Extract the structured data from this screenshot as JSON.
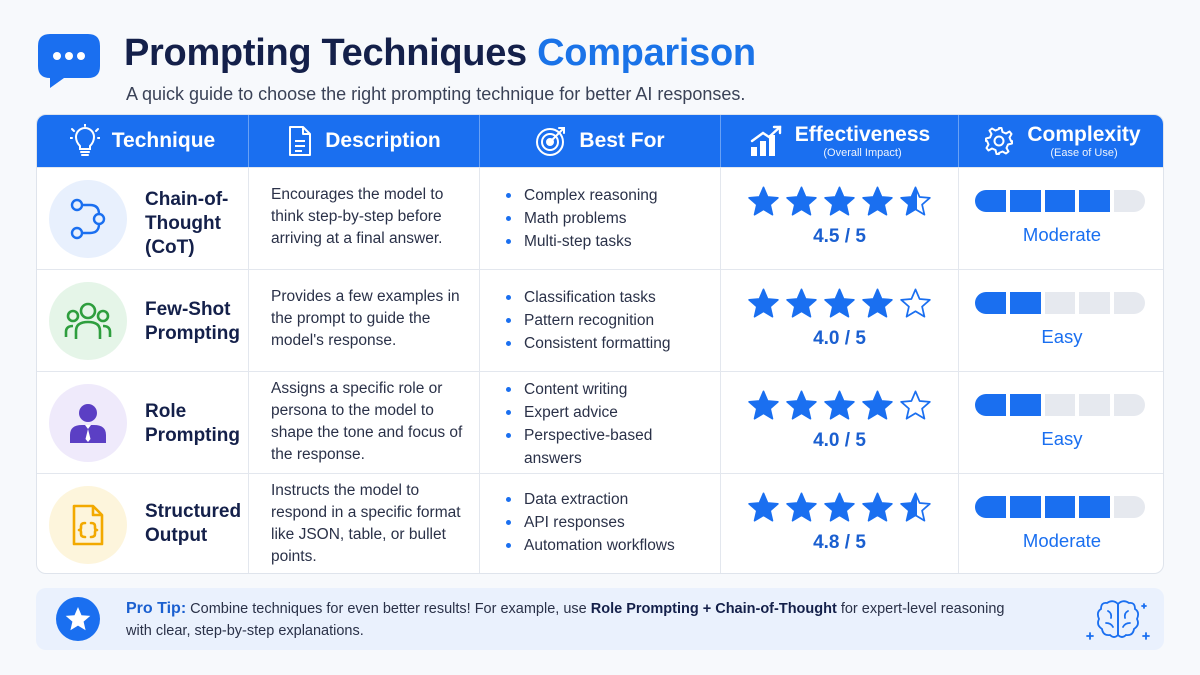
{
  "header": {
    "title_main": "Prompting Techniques",
    "title_accent": "Comparison",
    "subtitle": "A quick guide to choose the right prompting technique for better AI responses.",
    "logo_icon": "chat-bubble-icon"
  },
  "table": {
    "columns": [
      {
        "label": "Technique",
        "sub": "",
        "icon": "lightbulb-icon"
      },
      {
        "label": "Description",
        "sub": "",
        "icon": "document-icon"
      },
      {
        "label": "Best For",
        "sub": "",
        "icon": "target-icon"
      },
      {
        "label": "Effectiveness",
        "sub": "(Overall Impact)",
        "icon": "bar-chart-icon"
      },
      {
        "label": "Complexity",
        "sub": "(Ease of Use)",
        "icon": "gear-icon"
      }
    ],
    "rows": [
      {
        "name": "Chain-of-\nThought\n(CoT)",
        "icon": "flow-diagram-icon",
        "description": "Encourages the model to think step-by-step before arriving at a final answer.",
        "best_for": [
          "Complex reasoning",
          "Math problems",
          "Multi-step tasks"
        ],
        "rating": "4.5 / 5",
        "rating_value": 4.5,
        "complexity": "Moderate",
        "complexity_level": 4
      },
      {
        "name": "Few-Shot\nPrompting",
        "icon": "users-icon",
        "description": "Provides a few examples in the prompt to guide the model's response.",
        "best_for": [
          "Classification tasks",
          "Pattern recognition",
          "Consistent formatting"
        ],
        "rating": "4.0 / 5",
        "rating_value": 4.0,
        "complexity": "Easy",
        "complexity_level": 2
      },
      {
        "name": "Role\nPrompting",
        "icon": "person-icon",
        "description": "Assigns a specific role or persona to the model to shape the tone and focus of the response.",
        "best_for": [
          "Content writing",
          "Expert advice",
          "Perspective-based answers"
        ],
        "rating": "4.0 / 5",
        "rating_value": 4.0,
        "complexity": "Easy",
        "complexity_level": 2
      },
      {
        "name": "Structured\nOutput",
        "icon": "code-file-icon",
        "description": "Instructs the model to respond in a specific format like JSON, table, or bullet points.",
        "best_for": [
          "Data extraction",
          "API responses",
          "Automation workflows"
        ],
        "rating": "4.8 / 5",
        "rating_value": 4.8,
        "complexity": "Moderate",
        "complexity_level": 4
      }
    ]
  },
  "tip": {
    "label": "Pro Tip:",
    "text_1": " Combine techniques for even better results! For example, use ",
    "strong_1": "Role Prompting + Chain-of-Thought",
    "text_2": " for expert-level reasoning with clear, step-by-step explanations.",
    "icon": "star-icon",
    "decor_icon": "brain-icon"
  },
  "colors": {
    "accent": "#1a6ff0",
    "header_bg": "#1a6ff0",
    "title": "#14204a",
    "cot_circle": "#e8f0fd",
    "fewshot_circle": "#e5f5e8",
    "role_circle": "#efeafb",
    "structured_circle": "#fdf5dc"
  }
}
